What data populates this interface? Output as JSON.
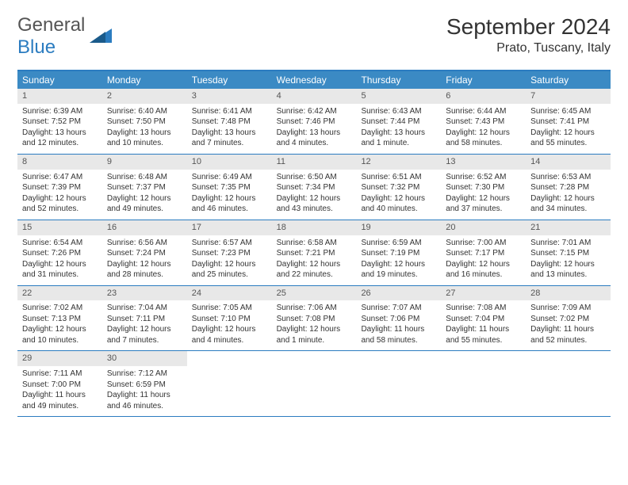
{
  "logo": {
    "text_general": "General",
    "text_blue": "Blue"
  },
  "header": {
    "month_title": "September 2024",
    "location": "Prato, Tuscany, Italy"
  },
  "colors": {
    "header_bar": "#3b8ac4",
    "header_border": "#2b7cc0",
    "day_num_bg": "#e8e8e8",
    "text": "#333333",
    "logo_blue": "#2b7cc0"
  },
  "weekdays": [
    "Sunday",
    "Monday",
    "Tuesday",
    "Wednesday",
    "Thursday",
    "Friday",
    "Saturday"
  ],
  "weeks": [
    [
      {
        "num": "1",
        "sunrise": "Sunrise: 6:39 AM",
        "sunset": "Sunset: 7:52 PM",
        "daylight": "Daylight: 13 hours and 12 minutes."
      },
      {
        "num": "2",
        "sunrise": "Sunrise: 6:40 AM",
        "sunset": "Sunset: 7:50 PM",
        "daylight": "Daylight: 13 hours and 10 minutes."
      },
      {
        "num": "3",
        "sunrise": "Sunrise: 6:41 AM",
        "sunset": "Sunset: 7:48 PM",
        "daylight": "Daylight: 13 hours and 7 minutes."
      },
      {
        "num": "4",
        "sunrise": "Sunrise: 6:42 AM",
        "sunset": "Sunset: 7:46 PM",
        "daylight": "Daylight: 13 hours and 4 minutes."
      },
      {
        "num": "5",
        "sunrise": "Sunrise: 6:43 AM",
        "sunset": "Sunset: 7:44 PM",
        "daylight": "Daylight: 13 hours and 1 minute."
      },
      {
        "num": "6",
        "sunrise": "Sunrise: 6:44 AM",
        "sunset": "Sunset: 7:43 PM",
        "daylight": "Daylight: 12 hours and 58 minutes."
      },
      {
        "num": "7",
        "sunrise": "Sunrise: 6:45 AM",
        "sunset": "Sunset: 7:41 PM",
        "daylight": "Daylight: 12 hours and 55 minutes."
      }
    ],
    [
      {
        "num": "8",
        "sunrise": "Sunrise: 6:47 AM",
        "sunset": "Sunset: 7:39 PM",
        "daylight": "Daylight: 12 hours and 52 minutes."
      },
      {
        "num": "9",
        "sunrise": "Sunrise: 6:48 AM",
        "sunset": "Sunset: 7:37 PM",
        "daylight": "Daylight: 12 hours and 49 minutes."
      },
      {
        "num": "10",
        "sunrise": "Sunrise: 6:49 AM",
        "sunset": "Sunset: 7:35 PM",
        "daylight": "Daylight: 12 hours and 46 minutes."
      },
      {
        "num": "11",
        "sunrise": "Sunrise: 6:50 AM",
        "sunset": "Sunset: 7:34 PM",
        "daylight": "Daylight: 12 hours and 43 minutes."
      },
      {
        "num": "12",
        "sunrise": "Sunrise: 6:51 AM",
        "sunset": "Sunset: 7:32 PM",
        "daylight": "Daylight: 12 hours and 40 minutes."
      },
      {
        "num": "13",
        "sunrise": "Sunrise: 6:52 AM",
        "sunset": "Sunset: 7:30 PM",
        "daylight": "Daylight: 12 hours and 37 minutes."
      },
      {
        "num": "14",
        "sunrise": "Sunrise: 6:53 AM",
        "sunset": "Sunset: 7:28 PM",
        "daylight": "Daylight: 12 hours and 34 minutes."
      }
    ],
    [
      {
        "num": "15",
        "sunrise": "Sunrise: 6:54 AM",
        "sunset": "Sunset: 7:26 PM",
        "daylight": "Daylight: 12 hours and 31 minutes."
      },
      {
        "num": "16",
        "sunrise": "Sunrise: 6:56 AM",
        "sunset": "Sunset: 7:24 PM",
        "daylight": "Daylight: 12 hours and 28 minutes."
      },
      {
        "num": "17",
        "sunrise": "Sunrise: 6:57 AM",
        "sunset": "Sunset: 7:23 PM",
        "daylight": "Daylight: 12 hours and 25 minutes."
      },
      {
        "num": "18",
        "sunrise": "Sunrise: 6:58 AM",
        "sunset": "Sunset: 7:21 PM",
        "daylight": "Daylight: 12 hours and 22 minutes."
      },
      {
        "num": "19",
        "sunrise": "Sunrise: 6:59 AM",
        "sunset": "Sunset: 7:19 PM",
        "daylight": "Daylight: 12 hours and 19 minutes."
      },
      {
        "num": "20",
        "sunrise": "Sunrise: 7:00 AM",
        "sunset": "Sunset: 7:17 PM",
        "daylight": "Daylight: 12 hours and 16 minutes."
      },
      {
        "num": "21",
        "sunrise": "Sunrise: 7:01 AM",
        "sunset": "Sunset: 7:15 PM",
        "daylight": "Daylight: 12 hours and 13 minutes."
      }
    ],
    [
      {
        "num": "22",
        "sunrise": "Sunrise: 7:02 AM",
        "sunset": "Sunset: 7:13 PM",
        "daylight": "Daylight: 12 hours and 10 minutes."
      },
      {
        "num": "23",
        "sunrise": "Sunrise: 7:04 AM",
        "sunset": "Sunset: 7:11 PM",
        "daylight": "Daylight: 12 hours and 7 minutes."
      },
      {
        "num": "24",
        "sunrise": "Sunrise: 7:05 AM",
        "sunset": "Sunset: 7:10 PM",
        "daylight": "Daylight: 12 hours and 4 minutes."
      },
      {
        "num": "25",
        "sunrise": "Sunrise: 7:06 AM",
        "sunset": "Sunset: 7:08 PM",
        "daylight": "Daylight: 12 hours and 1 minute."
      },
      {
        "num": "26",
        "sunrise": "Sunrise: 7:07 AM",
        "sunset": "Sunset: 7:06 PM",
        "daylight": "Daylight: 11 hours and 58 minutes."
      },
      {
        "num": "27",
        "sunrise": "Sunrise: 7:08 AM",
        "sunset": "Sunset: 7:04 PM",
        "daylight": "Daylight: 11 hours and 55 minutes."
      },
      {
        "num": "28",
        "sunrise": "Sunrise: 7:09 AM",
        "sunset": "Sunset: 7:02 PM",
        "daylight": "Daylight: 11 hours and 52 minutes."
      }
    ],
    [
      {
        "num": "29",
        "sunrise": "Sunrise: 7:11 AM",
        "sunset": "Sunset: 7:00 PM",
        "daylight": "Daylight: 11 hours and 49 minutes."
      },
      {
        "num": "30",
        "sunrise": "Sunrise: 7:12 AM",
        "sunset": "Sunset: 6:59 PM",
        "daylight": "Daylight: 11 hours and 46 minutes."
      },
      {
        "empty": true
      },
      {
        "empty": true
      },
      {
        "empty": true
      },
      {
        "empty": true
      },
      {
        "empty": true
      }
    ]
  ]
}
